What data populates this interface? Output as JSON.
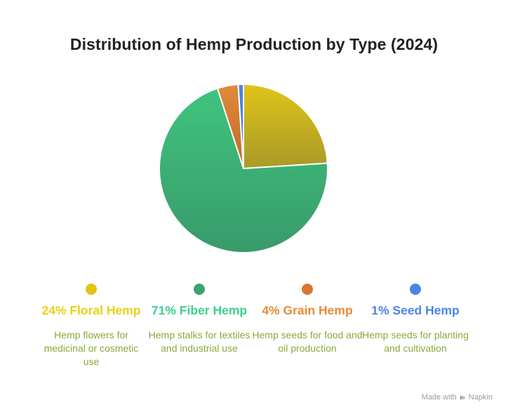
{
  "title": "Distribution of Hemp Production by Type (2024)",
  "chart_data": {
    "type": "pie",
    "title": "Distribution of Hemp Production by Type (2024)",
    "categories": [
      "Floral Hemp",
      "Fiber Hemp",
      "Grain Hemp",
      "Seed Hemp"
    ],
    "values": [
      24,
      71,
      4,
      1
    ],
    "unit": "%",
    "legend_position": "bottom",
    "colors": {
      "Floral Hemp": {
        "start": "#e0c418",
        "end": "#a89a28"
      },
      "Fiber Hemp": {
        "start": "#3ec47e",
        "end": "#3a9a6a"
      },
      "Grain Hemp": {
        "start": "#e08a3a",
        "end": "#c06a2a"
      },
      "Seed Hemp": {
        "start": "#4a86e8",
        "end": "#3a70d0"
      }
    }
  },
  "legend": [
    {
      "label": "24% Floral Hemp",
      "description": "Hemp flowers for medicinal or cosmetic use",
      "dot_color": "#e2c410",
      "text_color": "#e8d215"
    },
    {
      "label": "71% Fiber Hemp",
      "description": "Hemp stalks for textiles and industrial use",
      "dot_color": "#3aa46e",
      "text_color": "#3ed08a"
    },
    {
      "label": "4% Grain Hemp",
      "description": "Hemp seeds for food and oil production",
      "dot_color": "#d9782e",
      "text_color": "#e88a35"
    },
    {
      "label": "1% Seed Hemp",
      "description": "Hemp seeds for planting and cultivation",
      "dot_color": "#4a86e8",
      "text_color": "#4a86e8"
    }
  ],
  "watermark": {
    "prefix": "Made with",
    "brand": "Napkin",
    "icon": "napkin-logo-icon"
  }
}
